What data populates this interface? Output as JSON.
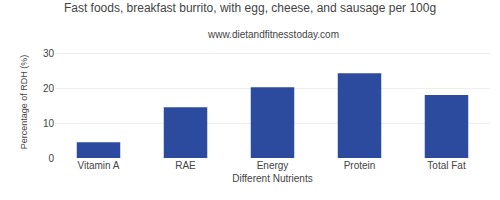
{
  "chart_data": {
    "type": "bar",
    "title": "Fast foods, breakfast burrito, with egg, cheese, and sausage per 100g",
    "subtitle": "www.dietandfitnesstoday.com",
    "categories": [
      "Vitamin A",
      "RAE",
      "Energy",
      "Protein",
      "Total Fat"
    ],
    "values": [
      4.5,
      14.5,
      20.2,
      24.2,
      18.0
    ],
    "color": "#2d4b9e",
    "xlabel": "Different Nutrients",
    "ylabel": "Percentage of RDH (%)",
    "ylim": [
      0,
      32
    ],
    "yticks": [
      0,
      10,
      20,
      30
    ],
    "grid": true
  }
}
